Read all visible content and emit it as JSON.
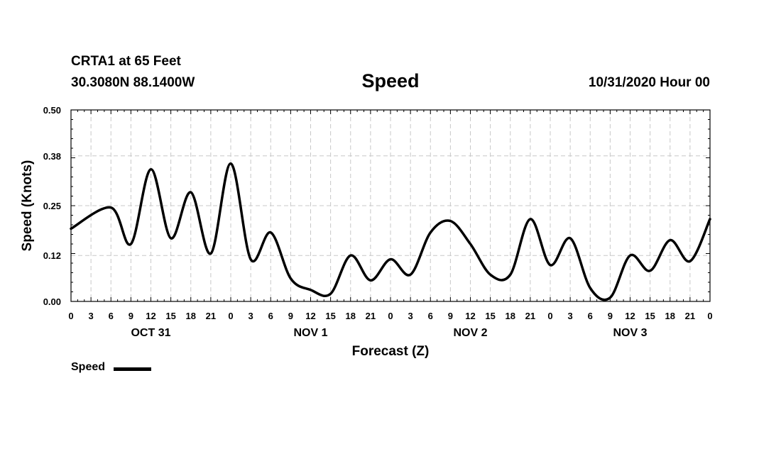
{
  "header": {
    "station": "CRTA1 at 65 Feet",
    "coords": "30.3080N 88.1400W",
    "title": "Speed",
    "run_time": "10/31/2020 Hour 00"
  },
  "legend": {
    "label": "Speed",
    "color": "#000000"
  },
  "chart_data": {
    "type": "line",
    "title": "Speed",
    "xlabel": "Forecast (Z)",
    "ylabel": "Speed (Knots)",
    "ylim": [
      0,
      0.5
    ],
    "yticks": [
      "0.00",
      "0.12",
      "0.25",
      "0.38",
      "0.50"
    ],
    "xlim_hours": [
      0,
      96
    ],
    "x_tick_hours": [
      0,
      3,
      6,
      9,
      12,
      15,
      18,
      21,
      24,
      27,
      30,
      33,
      36,
      39,
      42,
      45,
      48,
      51,
      54,
      57,
      60,
      63,
      66,
      69,
      72,
      75,
      78,
      81,
      84,
      87,
      90,
      93,
      96
    ],
    "x_tick_labels": [
      "0",
      "3",
      "6",
      "9",
      "12",
      "15",
      "18",
      "21",
      "0",
      "3",
      "6",
      "9",
      "12",
      "15",
      "18",
      "21",
      "0",
      "3",
      "6",
      "9",
      "12",
      "15",
      "18",
      "21",
      "0",
      "3",
      "6",
      "9",
      "12",
      "15",
      "18",
      "21",
      "0"
    ],
    "date_labels": [
      {
        "hour": 12,
        "label": "OCT 31"
      },
      {
        "hour": 36,
        "label": "NOV 1"
      },
      {
        "hour": 60,
        "label": "NOV 2"
      },
      {
        "hour": 84,
        "label": "NOV 3"
      }
    ],
    "grid": true,
    "series": [
      {
        "name": "Speed",
        "color": "#000000",
        "x": [
          0,
          6,
          9,
          12,
          15,
          18,
          21,
          24,
          27,
          30,
          33,
          36,
          39,
          42,
          45,
          48,
          51,
          54,
          57,
          60,
          63,
          66,
          69,
          72,
          75,
          78,
          81,
          84,
          87,
          90,
          93,
          96
        ],
        "y": [
          0.19,
          0.245,
          0.15,
          0.345,
          0.165,
          0.285,
          0.125,
          0.36,
          0.11,
          0.18,
          0.06,
          0.03,
          0.02,
          0.12,
          0.055,
          0.11,
          0.07,
          0.18,
          0.21,
          0.15,
          0.07,
          0.07,
          0.215,
          0.095,
          0.165,
          0.035,
          0.01,
          0.12,
          0.08,
          0.16,
          0.105,
          0.215
        ]
      }
    ]
  }
}
